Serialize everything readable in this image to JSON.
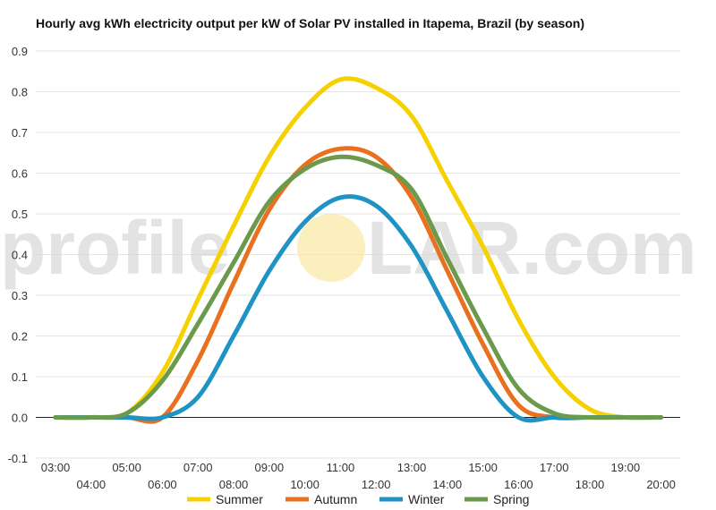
{
  "chart_data": {
    "type": "line",
    "title": "Hourly avg kWh electricity output per kW of Solar PV installed in Itapema, Brazil (by season)",
    "xlabel": "",
    "ylabel": "",
    "ylim": [
      -0.1,
      0.9
    ],
    "yticks": [
      "-0.1",
      "0.0",
      "0.1",
      "0.2",
      "0.3",
      "0.4",
      "0.5",
      "0.6",
      "0.7",
      "0.8",
      "0.9"
    ],
    "x": [
      "03:00",
      "04:00",
      "05:00",
      "06:00",
      "07:00",
      "08:00",
      "09:00",
      "10:00",
      "11:00",
      "12:00",
      "13:00",
      "14:00",
      "15:00",
      "16:00",
      "17:00",
      "18:00",
      "19:00",
      "20:00"
    ],
    "grid": true,
    "legend_position": "bottom",
    "series": [
      {
        "name": "Summer",
        "color": "#f5d100",
        "values": [
          0.0,
          0.0,
          0.01,
          0.11,
          0.29,
          0.47,
          0.64,
          0.76,
          0.83,
          0.81,
          0.74,
          0.58,
          0.42,
          0.24,
          0.1,
          0.02,
          0.0,
          0.0
        ]
      },
      {
        "name": "Autumn",
        "color": "#e8701e",
        "values": [
          0.0,
          0.0,
          0.0,
          0.0,
          0.14,
          0.33,
          0.51,
          0.62,
          0.66,
          0.64,
          0.54,
          0.36,
          0.18,
          0.03,
          0.0,
          0.0,
          0.0,
          0.0
        ]
      },
      {
        "name": "Winter",
        "color": "#1f93c4",
        "values": [
          0.0,
          0.0,
          0.0,
          0.0,
          0.05,
          0.2,
          0.36,
          0.48,
          0.54,
          0.52,
          0.42,
          0.26,
          0.1,
          0.0,
          0.0,
          0.0,
          0.0,
          0.0
        ]
      },
      {
        "name": "Spring",
        "color": "#6b9a4c",
        "values": [
          0.0,
          0.0,
          0.01,
          0.09,
          0.23,
          0.38,
          0.53,
          0.61,
          0.64,
          0.62,
          0.56,
          0.39,
          0.22,
          0.07,
          0.01,
          0.0,
          0.0,
          0.0
        ]
      }
    ]
  },
  "watermark": {
    "left": "profile",
    "right": "LAR.com",
    "sun_color": "#fbe9a8"
  }
}
